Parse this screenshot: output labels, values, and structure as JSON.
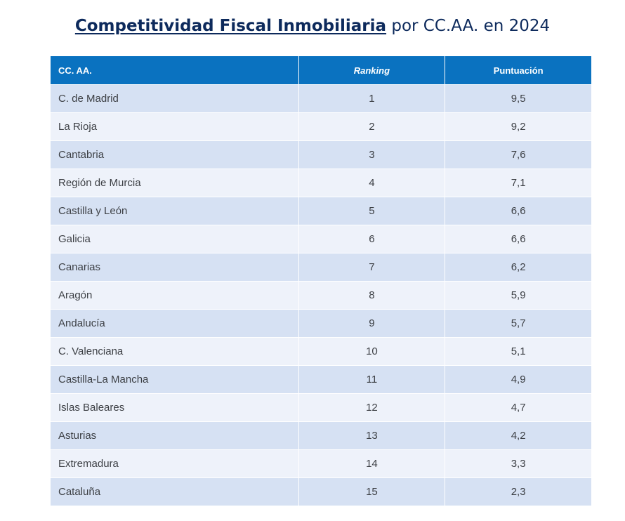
{
  "title": {
    "strong": "Competitividad Fiscal Inmobiliaria",
    "rest": " por CC.AA. en 2024"
  },
  "chart_data": {
    "type": "table",
    "title": "Competitividad Fiscal Inmobiliaria por CC.AA. en 2024",
    "columns": [
      "CC. AA.",
      "Ranking",
      "Puntuación"
    ],
    "rows": [
      [
        "C. de Madrid",
        "1",
        "9,5"
      ],
      [
        "La Rioja",
        "2",
        "9,2"
      ],
      [
        "Cantabria",
        "3",
        "7,6"
      ],
      [
        "Región de Murcia",
        "4",
        "7,1"
      ],
      [
        "Castilla y León",
        "5",
        "6,6"
      ],
      [
        "Galicia",
        "6",
        "6,6"
      ],
      [
        "Canarias",
        "7",
        "6,2"
      ],
      [
        "Aragón",
        "8",
        "5,9"
      ],
      [
        "Andalucía",
        "9",
        "5,7"
      ],
      [
        "C. Valenciana",
        "10",
        "5,1"
      ],
      [
        "Castilla-La Mancha",
        "11",
        "4,9"
      ],
      [
        "Islas Baleares",
        "12",
        "4,7"
      ],
      [
        "Asturias",
        "13",
        "4,2"
      ],
      [
        "Extremadura",
        "14",
        "3,3"
      ],
      [
        "Cataluña",
        "15",
        "2,3"
      ]
    ]
  },
  "colors": {
    "header": "#0a72c0",
    "row_dark": "#d6e1f3",
    "row_light": "#eef2fa",
    "title": "#0d2a5c"
  }
}
